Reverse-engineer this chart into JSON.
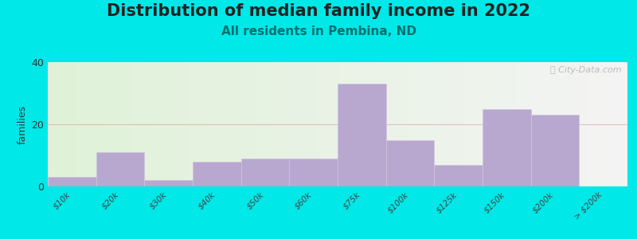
{
  "title": "Distribution of median family income in 2022",
  "subtitle": "All residents in Pembina, ND",
  "ylabel": "families",
  "background_outer": "#00e8e8",
  "bar_color": "#b8a8d0",
  "bar_edge_color": "#d0c4e0",
  "watermark": "ⓘ City-Data.com",
  "categories": [
    "$10k",
    "$20k",
    "$30k",
    "$40k",
    "$50k",
    "$60k",
    "$75k",
    "$100k",
    "$125k",
    "$150k",
    "$200k",
    "> $200k"
  ],
  "values": [
    3,
    11,
    2,
    8,
    9,
    9,
    33,
    15,
    7,
    25,
    23,
    0
  ],
  "ylim": [
    0,
    40
  ],
  "yticks": [
    0,
    20,
    40
  ],
  "title_fontsize": 15,
  "subtitle_fontsize": 11,
  "subtitle_color": "#007070",
  "grid_color": "#d09090",
  "grid_alpha": 0.5
}
